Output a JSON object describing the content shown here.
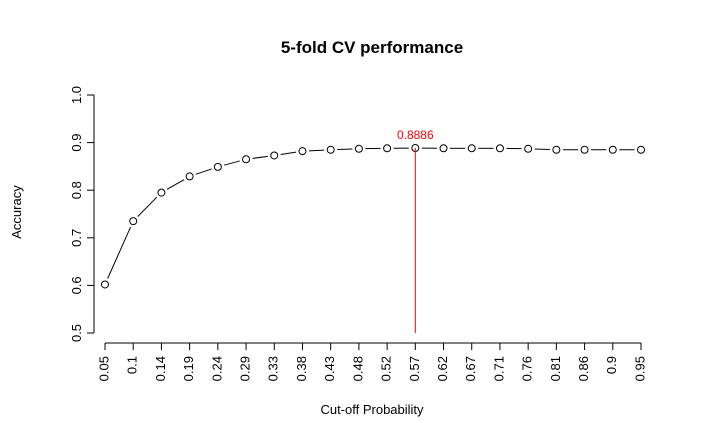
{
  "chart_data": {
    "type": "line",
    "title": "5-fold CV performance",
    "xlabel": "Cut-off Probability",
    "ylabel": "Accuracy",
    "categories": [
      "0.05",
      "0.1",
      "0.14",
      "0.19",
      "0.24",
      "0.29",
      "0.33",
      "0.38",
      "0.43",
      "0.48",
      "0.52",
      "0.57",
      "0.62",
      "0.67",
      "0.71",
      "0.76",
      "0.81",
      "0.86",
      "0.9",
      "0.95"
    ],
    "values": [
      0.602,
      0.735,
      0.795,
      0.829,
      0.849,
      0.865,
      0.873,
      0.882,
      0.885,
      0.887,
      0.888,
      0.8886,
      0.888,
      0.888,
      0.888,
      0.887,
      0.885,
      0.885,
      0.885,
      0.885
    ],
    "ylim": [
      0.5,
      1.0
    ],
    "yticks": [
      "0.5",
      "0.6",
      "0.7",
      "0.8",
      "0.9",
      "1.0"
    ],
    "line_style": "dashed-with-circles",
    "grid": false,
    "legend": "none",
    "highlight": {
      "category": "0.57",
      "value": 0.8886,
      "label": "0.8886",
      "color": "#ff0000"
    }
  }
}
